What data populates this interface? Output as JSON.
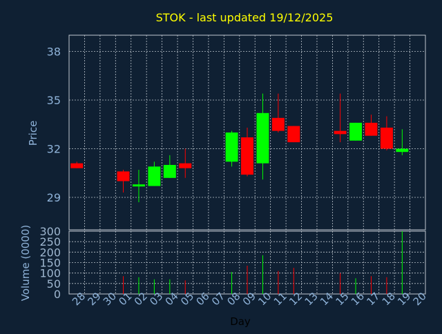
{
  "title": "STOK - last updated 19/12/2025",
  "colors": {
    "background": "#0f2033",
    "title": "#ffff00",
    "axis_text": "#8fb3d9",
    "grid": "#c0c8d0",
    "up": "#00ff00",
    "down": "#ff0000",
    "volume_text": "#9eb6cf"
  },
  "chart_data": [
    {
      "type": "candlestick",
      "title": "STOK - last updated 19/12/2025",
      "ylabel": "Price",
      "ylim": [
        27.0,
        39.0
      ],
      "yticks": [
        29,
        32,
        35,
        38
      ],
      "grid": true,
      "x_ticks": [
        "28",
        "29",
        "30",
        "01",
        "02",
        "03",
        "04",
        "05",
        "06",
        "07",
        "08",
        "09",
        "10",
        "11",
        "12",
        "13",
        "14",
        "15",
        "16",
        "17",
        "18",
        "19",
        "20"
      ],
      "candles": [
        {
          "x": "28",
          "open": 31.1,
          "high": 31.2,
          "low": 30.8,
          "close": 30.8
        },
        {
          "x": "01",
          "open": 30.6,
          "high": 30.7,
          "low": 29.3,
          "close": 30.0
        },
        {
          "x": "02",
          "open": 29.7,
          "high": 30.7,
          "low": 28.7,
          "close": 29.8
        },
        {
          "x": "03",
          "open": 29.7,
          "high": 31.2,
          "low": 29.7,
          "close": 30.9
        },
        {
          "x": "04",
          "open": 30.2,
          "high": 31.6,
          "low": 30.2,
          "close": 31.0
        },
        {
          "x": "05",
          "open": 31.1,
          "high": 32.0,
          "low": 30.2,
          "close": 30.8
        },
        {
          "x": "08",
          "open": 31.2,
          "high": 33.1,
          "low": 30.9,
          "close": 33.0
        },
        {
          "x": "09",
          "open": 32.7,
          "high": 33.3,
          "low": 30.3,
          "close": 30.4
        },
        {
          "x": "10",
          "open": 31.1,
          "high": 35.4,
          "low": 30.1,
          "close": 34.2
        },
        {
          "x": "11",
          "open": 33.9,
          "high": 35.4,
          "low": 33.0,
          "close": 33.1
        },
        {
          "x": "12",
          "open": 33.4,
          "high": 33.4,
          "low": 32.4,
          "close": 32.4
        },
        {
          "x": "15",
          "open": 33.1,
          "high": 35.4,
          "low": 32.4,
          "close": 32.9
        },
        {
          "x": "16",
          "open": 32.5,
          "high": 33.6,
          "low": 32.5,
          "close": 33.6
        },
        {
          "x": "17",
          "open": 33.6,
          "high": 34.1,
          "low": 32.8,
          "close": 32.8
        },
        {
          "x": "18",
          "open": 33.3,
          "high": 34.0,
          "low": 31.9,
          "close": 32.0
        },
        {
          "x": "19",
          "open": 31.8,
          "high": 33.2,
          "low": 31.6,
          "close": 32.0
        }
      ]
    },
    {
      "type": "bar",
      "xlabel": "Day",
      "ylabel": "Volume (0000)",
      "ylim": [
        0,
        300
      ],
      "yticks": [
        0,
        50,
        100,
        150,
        200,
        250,
        300
      ],
      "grid": true,
      "bars": [
        {
          "x": "01",
          "value": 85,
          "direction": "down"
        },
        {
          "x": "02",
          "value": 80,
          "direction": "up"
        },
        {
          "x": "03",
          "value": 70,
          "direction": "up"
        },
        {
          "x": "04",
          "value": 70,
          "direction": "up"
        },
        {
          "x": "05",
          "value": 65,
          "direction": "down"
        },
        {
          "x": "08",
          "value": 105,
          "direction": "up"
        },
        {
          "x": "09",
          "value": 135,
          "direction": "down"
        },
        {
          "x": "10",
          "value": 185,
          "direction": "up"
        },
        {
          "x": "11",
          "value": 110,
          "direction": "down"
        },
        {
          "x": "12",
          "value": 125,
          "direction": "down"
        },
        {
          "x": "15",
          "value": 100,
          "direction": "down"
        },
        {
          "x": "16",
          "value": 75,
          "direction": "up"
        },
        {
          "x": "17",
          "value": 85,
          "direction": "down"
        },
        {
          "x": "18",
          "value": 80,
          "direction": "down"
        },
        {
          "x": "19",
          "value": 300,
          "direction": "up"
        }
      ]
    }
  ]
}
